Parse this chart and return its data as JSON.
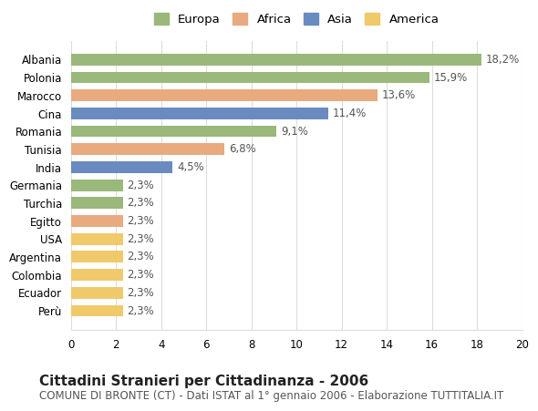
{
  "countries": [
    "Albania",
    "Polonia",
    "Marocco",
    "Cina",
    "Romania",
    "Tunisia",
    "India",
    "Germania",
    "Turchia",
    "Egitto",
    "USA",
    "Argentina",
    "Colombia",
    "Ecuador",
    "Perù"
  ],
  "values": [
    18.2,
    15.9,
    13.6,
    11.4,
    9.1,
    6.8,
    4.5,
    2.3,
    2.3,
    2.3,
    2.3,
    2.3,
    2.3,
    2.3,
    2.3
  ],
  "labels": [
    "18,2%",
    "15,9%",
    "13,6%",
    "11,4%",
    "9,1%",
    "6,8%",
    "4,5%",
    "2,3%",
    "2,3%",
    "2,3%",
    "2,3%",
    "2,3%",
    "2,3%",
    "2,3%",
    "2,3%"
  ],
  "categories": [
    "Europa",
    "Africa",
    "Asia",
    "America"
  ],
  "continent": [
    "Europa",
    "Europa",
    "Africa",
    "Asia",
    "Europa",
    "Africa",
    "Asia",
    "Europa",
    "Europa",
    "Africa",
    "America",
    "America",
    "America",
    "America",
    "America"
  ],
  "colors": {
    "Europa": "#9ab87a",
    "Africa": "#e8aa7e",
    "Asia": "#6a8bbf",
    "America": "#f0c96a"
  },
  "legend_colors": {
    "Europa": "#9ab87a",
    "Africa": "#e8aa7e",
    "Asia": "#6a8bbf",
    "America": "#f0c96a"
  },
  "xlim": [
    0,
    20
  ],
  "xticks": [
    0,
    2,
    4,
    6,
    8,
    10,
    12,
    14,
    16,
    18,
    20
  ],
  "title": "Cittadini Stranieri per Cittadinanza - 2006",
  "subtitle": "COMUNE DI BRONTE (CT) - Dati ISTAT al 1° gennaio 2006 - Elaborazione TUTTITALIA.IT",
  "bg_color": "#ffffff",
  "grid_color": "#dddddd",
  "bar_height": 0.65,
  "label_fontsize": 8.5,
  "title_fontsize": 11,
  "subtitle_fontsize": 8.5,
  "ytick_fontsize": 8.5,
  "xtick_fontsize": 8.5
}
